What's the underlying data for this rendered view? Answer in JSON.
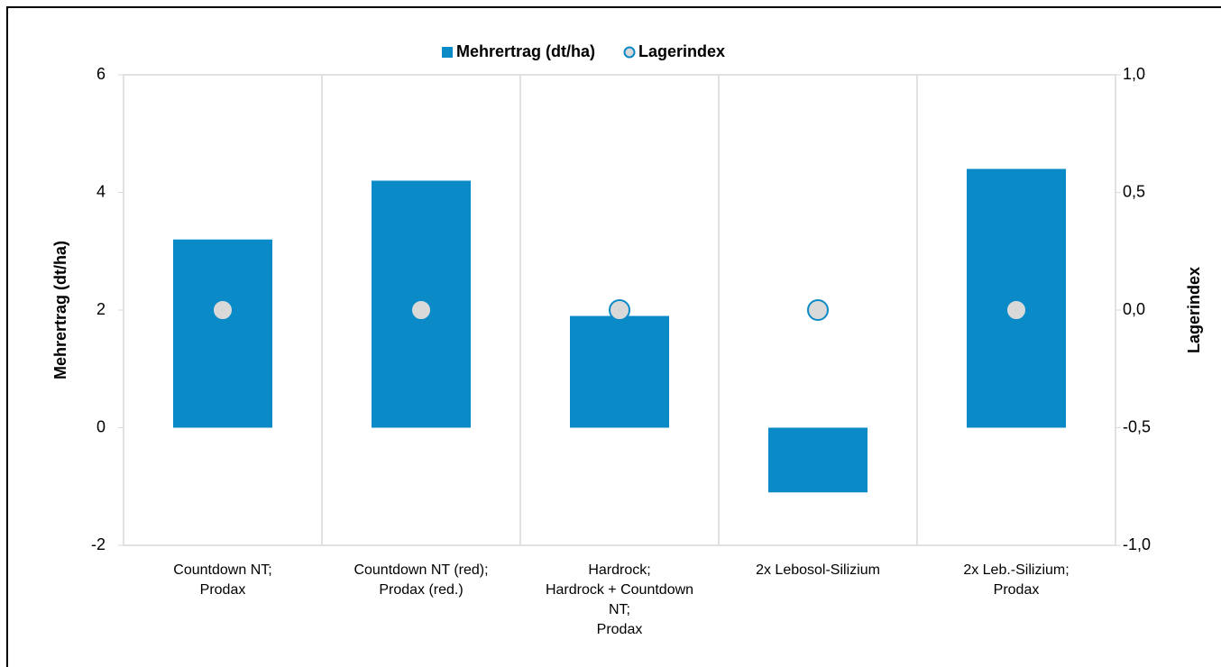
{
  "chart_data": {
    "type": "bar",
    "categories": [
      "Countdown NT;\nProdax",
      "Countdown NT (red);\nProdax (red.)",
      "Hardrock;\nHardrock + Countdown\nNT;\nProdax",
      "2x Lebosol-Silizium",
      "2x Leb.-Silizium;\nProdax"
    ],
    "series": [
      {
        "name": "Mehrertrag (dt/ha)",
        "color": "#0a8ac6",
        "values": [
          3.2,
          4.2,
          1.9,
          -1.1,
          4.4
        ]
      },
      {
        "name": "Lagerindex",
        "color": "#d9d9d9",
        "edge_color": "#0a8ac6",
        "type": "scatter",
        "axis": "y2",
        "values": [
          0,
          0,
          0,
          0,
          0
        ]
      }
    ],
    "ylabel": "Mehrertrag (dt/ha)",
    "y2label": "Lagerindex",
    "ylim": [
      -2,
      6
    ],
    "yticks": [
      -2,
      0,
      2,
      4,
      6
    ],
    "y2lim": [
      -1,
      1
    ],
    "y2ticks": [
      {
        "value": -1,
        "label": "-1,0"
      },
      {
        "value": -0.5,
        "label": "-0,5"
      },
      {
        "value": 0,
        "label": "0,0"
      },
      {
        "value": 0.5,
        "label": "0,5"
      },
      {
        "value": 1,
        "label": "1,0"
      }
    ],
    "legend": "top"
  }
}
